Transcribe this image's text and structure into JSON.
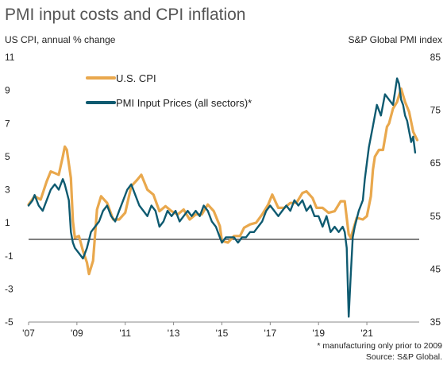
{
  "chart_data": {
    "type": "line",
    "title": "PMI input costs and CPI inflation",
    "left_axis_label": "US CPI, annual % change",
    "right_axis_label": "S&P Global PMI index",
    "left_ylim": [
      -5,
      11
    ],
    "right_ylim": [
      35,
      85
    ],
    "left_ticks": [
      "11",
      "9",
      "7",
      "5",
      "3",
      "1",
      "-1",
      "-3",
      "-5"
    ],
    "right_ticks": [
      "85",
      "75",
      "65",
      "55",
      "45",
      "35"
    ],
    "x_range": [
      "2007-01",
      "2023-03"
    ],
    "x_ticks": [
      "'07",
      "'09",
      "'11",
      "'13",
      "'15",
      "'17",
      "'19",
      "'21"
    ],
    "zero_line": 0,
    "grid": false,
    "legend_position": "top-left",
    "footnote": "* manufacturing only prior to 2009",
    "source": "Source: S&P Global.",
    "colors": {
      "cpi": "#E9A84D",
      "pmi": "#0E5A70"
    },
    "series": [
      {
        "name": "U.S. CPI",
        "axis": "left",
        "color": "#E9A84D",
        "points": [
          [
            "2007-01",
            2.1
          ],
          [
            "2007-04",
            2.6
          ],
          [
            "2007-07",
            2.4
          ],
          [
            "2007-10",
            3.5
          ],
          [
            "2007-12",
            4.1
          ],
          [
            "2008-02",
            4.0
          ],
          [
            "2008-04",
            3.9
          ],
          [
            "2008-06",
            5.0
          ],
          [
            "2008-07",
            5.6
          ],
          [
            "2008-08",
            5.4
          ],
          [
            "2008-10",
            3.7
          ],
          [
            "2008-11",
            1.1
          ],
          [
            "2008-12",
            0.1
          ],
          [
            "2009-02",
            0.2
          ],
          [
            "2009-04",
            -0.7
          ],
          [
            "2009-06",
            -1.4
          ],
          [
            "2009-07",
            -2.1
          ],
          [
            "2009-09",
            -1.3
          ],
          [
            "2009-11",
            1.8
          ],
          [
            "2010-01",
            2.6
          ],
          [
            "2010-04",
            2.2
          ],
          [
            "2010-07",
            1.2
          ],
          [
            "2010-10",
            1.2
          ],
          [
            "2011-01",
            1.6
          ],
          [
            "2011-04",
            3.2
          ],
          [
            "2011-07",
            3.6
          ],
          [
            "2011-09",
            3.9
          ],
          [
            "2011-12",
            3.0
          ],
          [
            "2012-03",
            2.7
          ],
          [
            "2012-06",
            1.7
          ],
          [
            "2012-09",
            2.0
          ],
          [
            "2012-12",
            1.7
          ],
          [
            "2013-03",
            1.5
          ],
          [
            "2013-06",
            1.8
          ],
          [
            "2013-09",
            1.2
          ],
          [
            "2013-12",
            1.5
          ],
          [
            "2014-03",
            1.5
          ],
          [
            "2014-06",
            2.1
          ],
          [
            "2014-09",
            1.7
          ],
          [
            "2014-12",
            0.8
          ],
          [
            "2015-01",
            -0.1
          ],
          [
            "2015-04",
            -0.2
          ],
          [
            "2015-07",
            0.2
          ],
          [
            "2015-10",
            0.2
          ],
          [
            "2015-12",
            0.7
          ],
          [
            "2016-03",
            0.9
          ],
          [
            "2016-06",
            1.0
          ],
          [
            "2016-09",
            1.5
          ],
          [
            "2016-12",
            2.1
          ],
          [
            "2017-02",
            2.7
          ],
          [
            "2017-05",
            1.9
          ],
          [
            "2017-08",
            1.9
          ],
          [
            "2017-11",
            2.2
          ],
          [
            "2018-02",
            2.2
          ],
          [
            "2018-05",
            2.8
          ],
          [
            "2018-07",
            2.9
          ],
          [
            "2018-10",
            2.5
          ],
          [
            "2018-12",
            1.9
          ],
          [
            "2019-03",
            1.9
          ],
          [
            "2019-06",
            1.6
          ],
          [
            "2019-09",
            1.7
          ],
          [
            "2019-12",
            2.3
          ],
          [
            "2020-02",
            2.3
          ],
          [
            "2020-04",
            0.3
          ],
          [
            "2020-05",
            0.1
          ],
          [
            "2020-08",
            1.3
          ],
          [
            "2020-11",
            1.2
          ],
          [
            "2021-01",
            1.4
          ],
          [
            "2021-03",
            2.6
          ],
          [
            "2021-04",
            4.2
          ],
          [
            "2021-05",
            5.0
          ],
          [
            "2021-07",
            5.4
          ],
          [
            "2021-09",
            5.4
          ],
          [
            "2021-11",
            6.8
          ],
          [
            "2021-12",
            7.0
          ],
          [
            "2022-02",
            7.9
          ],
          [
            "2022-04",
            8.3
          ],
          [
            "2022-06",
            9.1
          ],
          [
            "2022-08",
            8.3
          ],
          [
            "2022-10",
            7.7
          ],
          [
            "2022-12",
            6.5
          ],
          [
            "2023-02",
            6.0
          ]
        ]
      },
      {
        "name": "PMI Input Prices (all sectors)*",
        "axis": "right",
        "color": "#0E5A70",
        "points": [
          [
            "2007-01",
            57
          ],
          [
            "2007-03",
            58
          ],
          [
            "2007-04",
            59
          ],
          [
            "2007-06",
            57
          ],
          [
            "2007-08",
            56
          ],
          [
            "2007-10",
            58
          ],
          [
            "2007-12",
            60
          ],
          [
            "2008-02",
            61
          ],
          [
            "2008-04",
            60
          ],
          [
            "2008-06",
            62
          ],
          [
            "2008-07",
            61
          ],
          [
            "2008-09",
            58
          ],
          [
            "2008-10",
            52
          ],
          [
            "2008-11",
            50
          ],
          [
            "2008-12",
            49
          ],
          [
            "2009-02",
            48
          ],
          [
            "2009-04",
            47
          ],
          [
            "2009-06",
            49
          ],
          [
            "2009-08",
            52
          ],
          [
            "2009-10",
            53
          ],
          [
            "2009-12",
            54
          ],
          [
            "2010-02",
            56
          ],
          [
            "2010-04",
            57
          ],
          [
            "2010-06",
            55
          ],
          [
            "2010-08",
            54
          ],
          [
            "2010-10",
            56
          ],
          [
            "2010-12",
            58
          ],
          [
            "2011-02",
            60
          ],
          [
            "2011-04",
            61
          ],
          [
            "2011-06",
            59
          ],
          [
            "2011-08",
            57
          ],
          [
            "2011-10",
            56
          ],
          [
            "2011-12",
            55
          ],
          [
            "2012-02",
            57
          ],
          [
            "2012-04",
            56
          ],
          [
            "2012-06",
            53
          ],
          [
            "2012-08",
            54
          ],
          [
            "2012-10",
            56
          ],
          [
            "2012-12",
            55
          ],
          [
            "2013-02",
            56
          ],
          [
            "2013-04",
            54
          ],
          [
            "2013-06",
            55
          ],
          [
            "2013-08",
            56
          ],
          [
            "2013-10",
            55
          ],
          [
            "2013-12",
            56
          ],
          [
            "2014-02",
            55
          ],
          [
            "2014-04",
            57
          ],
          [
            "2014-06",
            56
          ],
          [
            "2014-08",
            54
          ],
          [
            "2014-10",
            53
          ],
          [
            "2014-12",
            51
          ],
          [
            "2015-01",
            50
          ],
          [
            "2015-03",
            51
          ],
          [
            "2015-05",
            51
          ],
          [
            "2015-07",
            51
          ],
          [
            "2015-09",
            50
          ],
          [
            "2015-11",
            51
          ],
          [
            "2016-01",
            51
          ],
          [
            "2016-03",
            52
          ],
          [
            "2016-05",
            52
          ],
          [
            "2016-07",
            53
          ],
          [
            "2016-09",
            54
          ],
          [
            "2016-11",
            56
          ],
          [
            "2017-01",
            57
          ],
          [
            "2017-03",
            56
          ],
          [
            "2017-05",
            55
          ],
          [
            "2017-07",
            56
          ],
          [
            "2017-09",
            57
          ],
          [
            "2017-11",
            56
          ],
          [
            "2018-01",
            58
          ],
          [
            "2018-03",
            57
          ],
          [
            "2018-05",
            58
          ],
          [
            "2018-07",
            56
          ],
          [
            "2018-09",
            57
          ],
          [
            "2018-11",
            55
          ],
          [
            "2019-01",
            55
          ],
          [
            "2019-03",
            53
          ],
          [
            "2019-05",
            55
          ],
          [
            "2019-07",
            52
          ],
          [
            "2019-09",
            53
          ],
          [
            "2019-11",
            52
          ],
          [
            "2020-01",
            53
          ],
          [
            "2020-02",
            52
          ],
          [
            "2020-03",
            49
          ],
          [
            "2020-04",
            36
          ],
          [
            "2020-05",
            44
          ],
          [
            "2020-06",
            51
          ],
          [
            "2020-07",
            53
          ],
          [
            "2020-09",
            56
          ],
          [
            "2020-11",
            58
          ],
          [
            "2020-12",
            62
          ],
          [
            "2021-02",
            68
          ],
          [
            "2021-04",
            72
          ],
          [
            "2021-06",
            76
          ],
          [
            "2021-08",
            74
          ],
          [
            "2021-10",
            78
          ],
          [
            "2021-12",
            77
          ],
          [
            "2022-02",
            76
          ],
          [
            "2022-04",
            81
          ],
          [
            "2022-05",
            80
          ],
          [
            "2022-06",
            77
          ],
          [
            "2022-07",
            76
          ],
          [
            "2022-08",
            74
          ],
          [
            "2022-09",
            73
          ],
          [
            "2022-10",
            71
          ],
          [
            "2022-11",
            69
          ],
          [
            "2022-12",
            70
          ],
          [
            "2023-01",
            67
          ]
        ]
      }
    ]
  }
}
